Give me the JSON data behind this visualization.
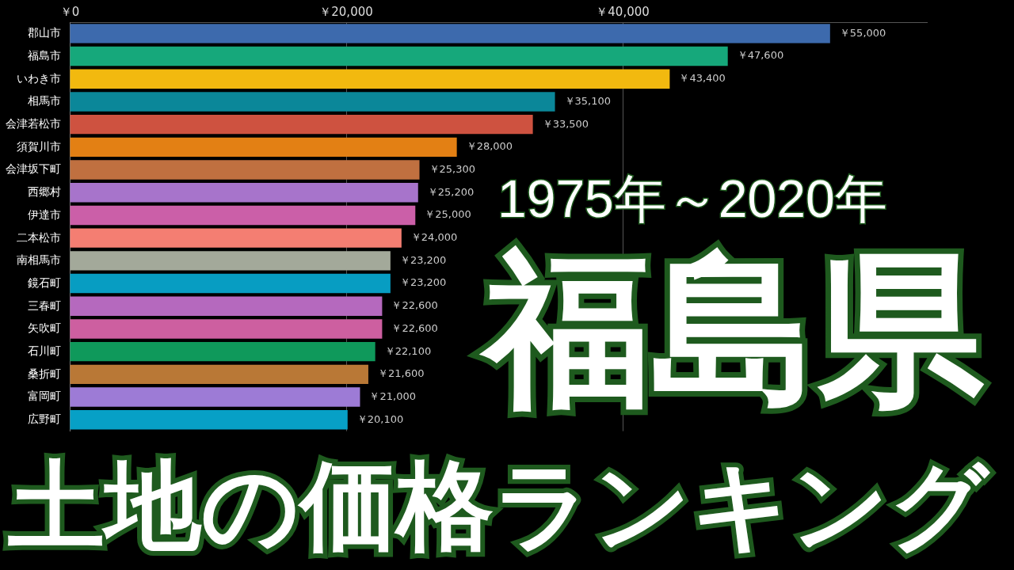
{
  "chart_data": {
    "type": "bar",
    "orientation": "horizontal",
    "title": "福島県",
    "subtitle": "土地の価格ランキング",
    "annotations": [
      "1975年～2020年"
    ],
    "categories": [
      "郡山市",
      "福島市",
      "いわき市",
      "相馬市",
      "会津若松市",
      "須賀川市",
      "会津坂下町",
      "西郷村",
      "伊達市",
      "二本松市",
      "南相馬市",
      "鏡石町",
      "三春町",
      "矢吹町",
      "石川町",
      "桑折町",
      "富岡町",
      "広野町"
    ],
    "values": [
      55000,
      47600,
      43400,
      35100,
      33500,
      28000,
      25300,
      25200,
      25000,
      24000,
      23200,
      23200,
      22600,
      22600,
      22100,
      21600,
      21000,
      20100
    ],
    "value_labels": [
      "￥55,000",
      "￥47,600",
      "￥43,400",
      "￥35,100",
      "￥33,500",
      "￥28,000",
      "￥25,300",
      "￥25,200",
      "￥25,000",
      "￥24,000",
      "￥23,200",
      "￥23,200",
      "￥22,600",
      "￥22,600",
      "￥22,100",
      "￥21,600",
      "￥21,000",
      "￥20,100"
    ],
    "colors": [
      "#3d6aad",
      "#16a87b",
      "#f2b90f",
      "#0b8799",
      "#ce5240",
      "#e38014",
      "#c07040",
      "#a774cb",
      "#cb5fa8",
      "#f47e72",
      "#a3a99a",
      "#079dc2",
      "#b569be",
      "#cd5fa0",
      "#0f995b",
      "#b97836",
      "#9d7bd6",
      "#07a0c6"
    ],
    "xlim": [
      0,
      62000
    ],
    "xticks": [
      {
        "value": 0,
        "label": "￥0"
      },
      {
        "value": 20000,
        "label": "￥20,000"
      },
      {
        "value": 40000,
        "label": "￥40,000"
      }
    ],
    "grid": "x",
    "legend": false
  }
}
